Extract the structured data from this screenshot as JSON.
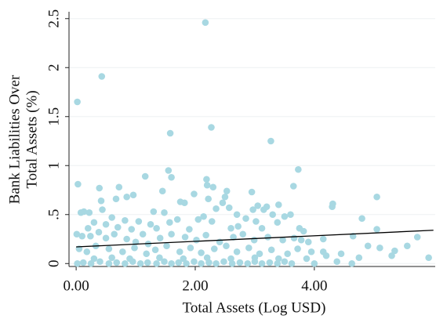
{
  "chart_data": {
    "type": "scatter",
    "xlabel": "Total Assets (Log USD)",
    "ylabel": [
      "Bank Liabilities Over",
      "Total Assets (%)"
    ],
    "color": "#a8d8e2",
    "x": [
      2.17,
      0.43,
      0.02,
      1.58,
      2.27,
      3.27,
      3.73,
      1.55,
      1.16,
      1.6,
      2.19,
      0.03,
      2.2,
      2.3,
      0.39,
      0.72,
      3.65,
      2.95,
      2.53,
      1.45,
      0.96,
      1.98,
      0.85,
      1.75,
      1.82,
      2.22,
      2.5,
      2.46,
      0.42,
      0.67,
      4.31,
      4.3,
      5.05,
      3.4,
      3.2,
      3.05,
      0.44,
      0.13,
      0.08,
      0.22,
      1.3,
      1.48,
      2.35,
      2.57,
      2.7,
      2.97,
      3.15,
      3.3,
      3.5,
      3.6,
      4.8,
      0.6,
      0.82,
      1.05,
      1.25,
      1.57,
      1.7,
      2.05,
      2.14,
      2.28,
      2.85,
      3.02,
      3.38,
      0.3,
      0.5,
      0.7,
      0.2,
      0.38,
      0.93,
      1.12,
      1.35,
      1.9,
      2.6,
      3.12,
      3.75,
      3.82,
      2.72,
      3.9,
      4.15,
      4.65,
      5.05,
      5.73,
      5.56,
      5.35,
      5.92,
      0.01,
      0.1,
      0.24,
      0.5,
      0.64,
      0.85,
      1.0,
      1.21,
      1.41,
      1.6,
      1.83,
      2.02,
      2.18,
      2.41,
      2.64,
      2.8,
      2.99,
      3.22,
      3.47,
      3.66,
      3.78,
      4.2,
      4.45,
      4.15,
      4.75,
      4.9,
      5.1,
      4.0,
      4.38,
      4.63,
      5.3,
      3.95,
      3.87,
      0.05,
      0.18,
      0.33,
      0.55,
      0.78,
      0.98,
      1.18,
      1.33,
      1.52,
      1.74,
      1.92,
      2.1,
      2.32,
      2.52,
      2.7,
      2.9,
      3.08,
      3.28,
      3.55,
      3.72,
      0.02,
      0.12,
      0.25,
      0.4,
      0.55,
      0.68,
      0.82,
      0.95,
      1.08,
      1.2,
      1.35,
      1.48,
      1.6,
      1.72,
      1.85,
      1.98,
      2.1,
      2.23,
      2.35,
      2.48,
      2.62,
      2.75,
      2.88,
      3.0,
      3.12,
      3.25,
      3.38,
      3.5,
      3.62,
      0.3,
      0.6,
      0.9,
      1.4,
      1.8,
      2.2,
      2.6,
      3.0,
      3.4
    ],
    "values": [
      2.46,
      1.91,
      1.65,
      1.33,
      1.39,
      1.25,
      0.96,
      0.95,
      0.89,
      0.88,
      0.86,
      0.81,
      0.8,
      0.78,
      0.77,
      0.78,
      0.79,
      0.73,
      0.74,
      0.74,
      0.7,
      0.71,
      0.68,
      0.63,
      0.62,
      0.66,
      0.68,
      0.62,
      0.64,
      0.66,
      0.61,
      0.58,
      0.68,
      0.6,
      0.58,
      0.59,
      0.55,
      0.53,
      0.52,
      0.52,
      0.53,
      0.52,
      0.56,
      0.57,
      0.5,
      0.55,
      0.55,
      0.5,
      0.48,
      0.5,
      0.46,
      0.47,
      0.44,
      0.43,
      0.4,
      0.42,
      0.45,
      0.45,
      0.48,
      0.43,
      0.46,
      0.43,
      0.42,
      0.42,
      0.4,
      0.37,
      0.36,
      0.32,
      0.35,
      0.3,
      0.36,
      0.35,
      0.36,
      0.36,
      0.36,
      0.33,
      0.38,
      0.22,
      0.25,
      0.28,
      0.35,
      0.27,
      0.18,
      0.13,
      0.06,
      0.3,
      0.28,
      0.28,
      0.26,
      0.3,
      0.25,
      0.22,
      0.2,
      0.26,
      0.3,
      0.27,
      0.24,
      0.29,
      0.22,
      0.27,
      0.3,
      0.24,
      0.27,
      0.24,
      0.26,
      0.24,
      0.08,
      0.1,
      0.12,
      0.06,
      0.18,
      0.16,
      0.0,
      0.02,
      0.0,
      0.08,
      0.12,
      0.05,
      0.15,
      0.12,
      0.18,
      0.15,
      0.12,
      0.16,
      0.1,
      0.14,
      0.18,
      0.12,
      0.16,
      0.11,
      0.15,
      0.18,
      0.12,
      0.16,
      0.1,
      0.14,
      0.1,
      0.15,
      0.0,
      0.01,
      0.0,
      0.02,
      0.0,
      0.01,
      0.0,
      0.02,
      0.0,
      0.01,
      0.0,
      0.02,
      0.0,
      0.01,
      0.0,
      0.02,
      0.0,
      0.01,
      0.0,
      0.02,
      0.0,
      0.01,
      0.0,
      0.02,
      0.0,
      0.01,
      0.0,
      0.02,
      0.0,
      0.05,
      0.06,
      0.05,
      0.06,
      0.05,
      0.06,
      0.05,
      0.06,
      0.05
    ],
    "fit_line": {
      "x": [
        0,
        6
      ],
      "values": [
        0.17,
        0.34
      ],
      "color": "#000000"
    },
    "xlim": [
      -0.12,
      6.03
    ],
    "ylim": [
      -0.03,
      2.57
    ],
    "xticks": [
      {
        "value": 0,
        "label": "0.00"
      },
      {
        "value": 2,
        "label": "2.00"
      },
      {
        "value": 4,
        "label": "4.00"
      }
    ],
    "yticks": [
      0,
      {
        "value": 0.5,
        "label": ".5"
      },
      1,
      1.5,
      2,
      2.5
    ],
    "grid": true
  }
}
